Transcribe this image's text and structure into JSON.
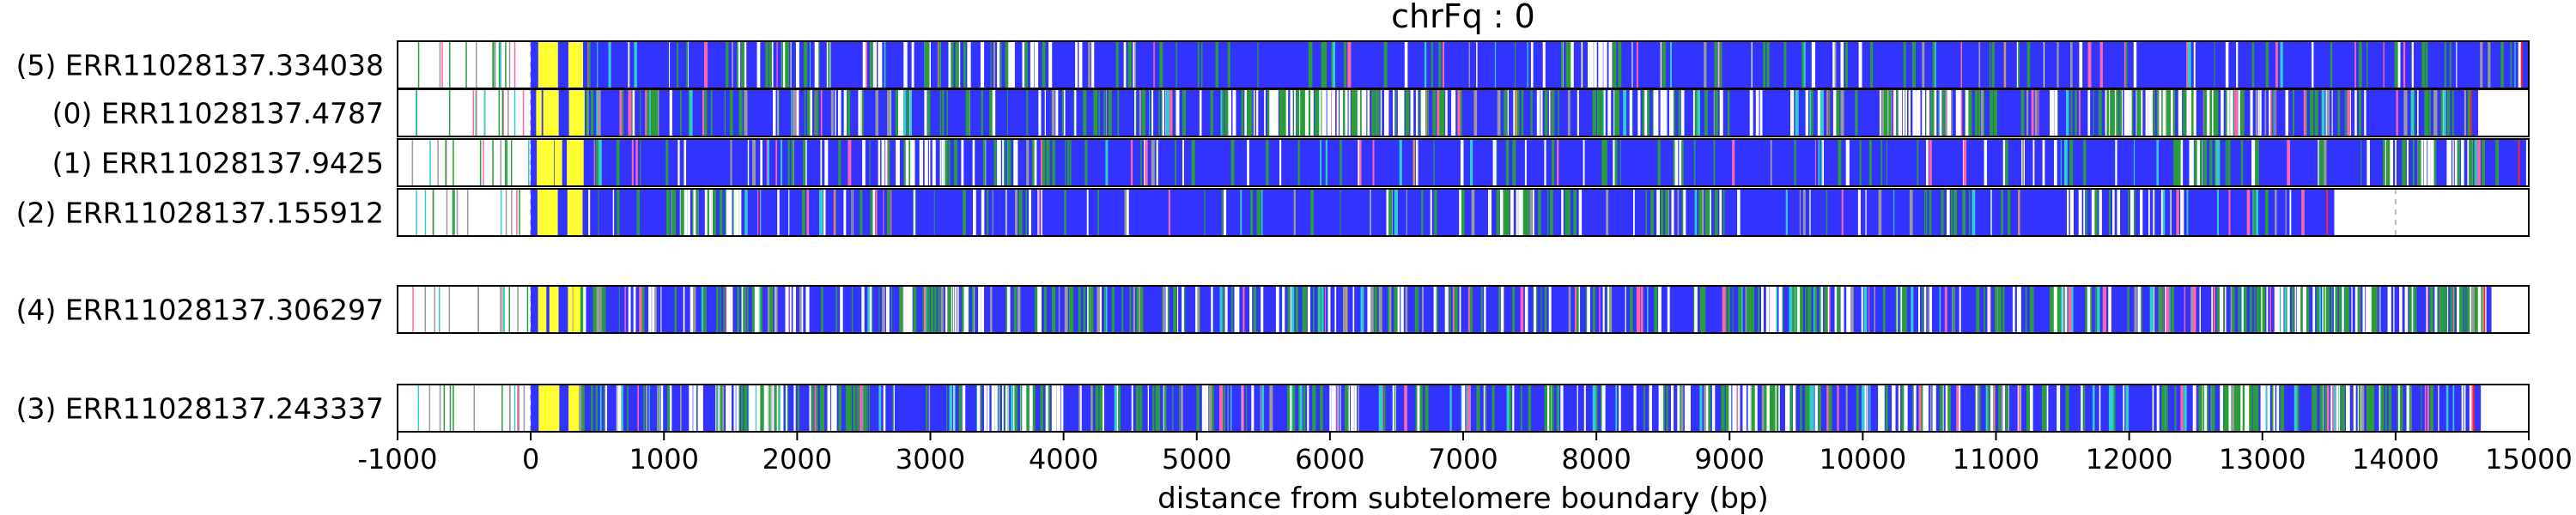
{
  "chart_data": {
    "type": "heatmap",
    "title": "chrFq : 0",
    "xlabel": "distance from subtelomere boundary (bp)",
    "ylabel": "",
    "xlim": [
      -1000,
      15000
    ],
    "xticks": [
      -1000,
      0,
      1000,
      2000,
      3000,
      4000,
      5000,
      6000,
      7000,
      8000,
      9000,
      10000,
      11000,
      12000,
      13000,
      14000,
      15000
    ],
    "xtick_labels": [
      "-1000",
      "0",
      "1000",
      "2000",
      "3000",
      "4000",
      "5000",
      "6000",
      "7000",
      "8000",
      "9000",
      "10000",
      "11000",
      "12000",
      "13000",
      "14000",
      "15000"
    ],
    "grid": "dashed vertical lines every 1000 bp",
    "groups": [
      {
        "reads": [
          {
            "label": "(5) ERR11028137.334038",
            "end": 15000
          },
          {
            "label": "(0) ERR11028137.4787",
            "end": 14620
          },
          {
            "label": "(1) ERR11028137.9425",
            "end": 14980
          },
          {
            "label": "(2) ERR11028137.155912",
            "end": 13540
          }
        ]
      },
      {
        "reads": [
          {
            "label": "(4) ERR11028137.306297",
            "end": 14720
          }
        ]
      },
      {
        "reads": [
          {
            "label": "(3) ERR11028137.243337",
            "end": 14640
          }
        ]
      }
    ],
    "colors": {
      "background": "#3333ff",
      "white": "#ffffff",
      "green": "#2a9d3a",
      "yellow": "#ffff33",
      "gray": "#9a9a9a",
      "cyan": "#33cccc",
      "pink": "#ff66aa",
      "red": "#ff2222",
      "tan": "#cc9966",
      "frame": "#000000",
      "grid": "#bbbbbb"
    }
  }
}
